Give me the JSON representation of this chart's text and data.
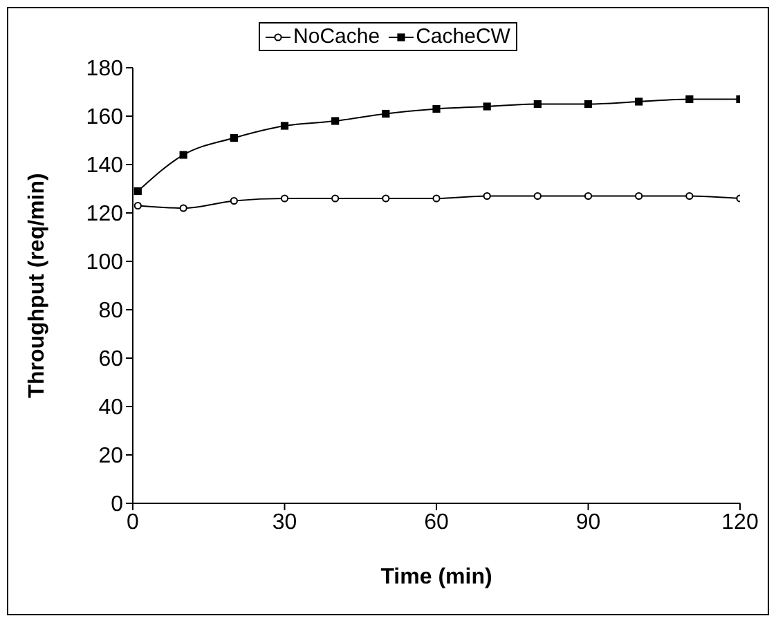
{
  "chart_data": {
    "type": "line",
    "xlabel": "Time (min)",
    "ylabel": "Throughput (req/min)",
    "x": [
      1,
      10,
      20,
      30,
      40,
      50,
      60,
      70,
      80,
      90,
      100,
      110,
      120
    ],
    "series": [
      {
        "name": "NoCache",
        "color": "#000000",
        "marker": "circle",
        "values": [
          123,
          122,
          125,
          126,
          126,
          126,
          126,
          127,
          127,
          127,
          127,
          127,
          126
        ]
      },
      {
        "name": "CacheCW",
        "color": "#000000",
        "marker": "square",
        "values": [
          129,
          144,
          151,
          156,
          158,
          161,
          163,
          164,
          165,
          165,
          166,
          167,
          167
        ]
      }
    ],
    "xlim": [
      0,
      120
    ],
    "xticks": [
      0,
      30,
      60,
      90,
      120
    ],
    "ylim": [
      0,
      180
    ],
    "yticks": [
      0,
      20,
      40,
      60,
      80,
      100,
      120,
      140,
      160,
      180
    ],
    "grid": false,
    "legend": "top"
  }
}
